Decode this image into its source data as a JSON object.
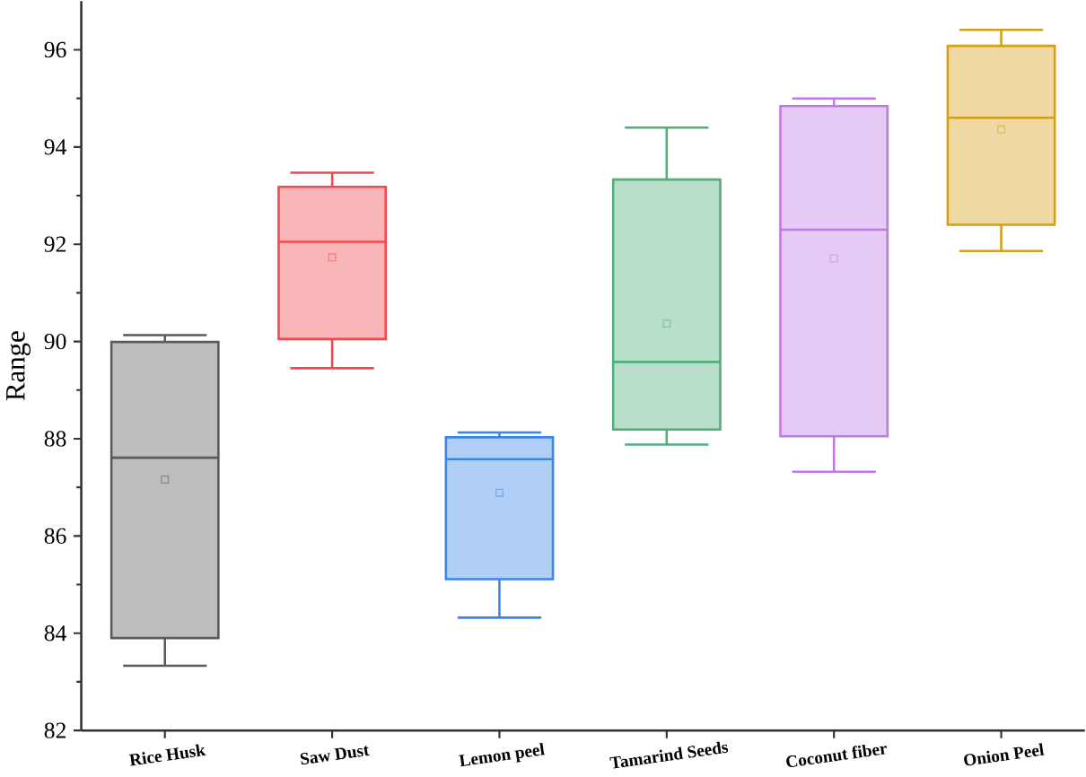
{
  "chart_data": {
    "type": "box",
    "ylabel": "Range",
    "categories": [
      "Rice Husk",
      "Saw Dust",
      "Lemon peel",
      "Tamarind Seeds",
      "Coconut fiber",
      "Onion Peel"
    ],
    "colors": [
      "#5a5a5a",
      "#f0484e",
      "#3a85e8",
      "#4fb07a",
      "#c07ae8",
      "#d4a017"
    ],
    "boxes": [
      {
        "low": 83.33,
        "q1": 83.9,
        "median": 87.61,
        "q3": 89.99,
        "high": 90.13,
        "mean": 87.16
      },
      {
        "low": 89.45,
        "q1": 90.05,
        "median": 92.05,
        "q3": 93.18,
        "high": 93.47,
        "mean": 91.73
      },
      {
        "low": 84.32,
        "q1": 85.11,
        "median": 87.58,
        "q3": 88.03,
        "high": 88.13,
        "mean": 86.89
      },
      {
        "low": 87.88,
        "q1": 88.19,
        "median": 89.58,
        "q3": 93.33,
        "high": 94.4,
        "mean": 90.37
      },
      {
        "low": 87.32,
        "q1": 88.05,
        "median": 92.3,
        "q3": 94.84,
        "high": 95.0,
        "mean": 91.71
      },
      {
        "low": 91.86,
        "q1": 92.4,
        "median": 94.6,
        "q3": 96.08,
        "high": 96.41,
        "mean": 94.36
      }
    ],
    "ylim": [
      82,
      97
    ],
    "yticks": [
      82,
      84,
      86,
      88,
      90,
      92,
      94,
      96
    ],
    "grid": false,
    "marker": "square"
  }
}
